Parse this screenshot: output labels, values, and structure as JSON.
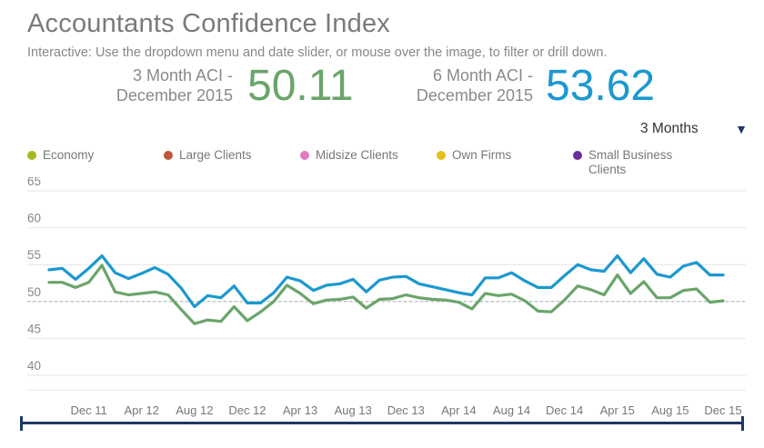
{
  "header": {
    "title": "Accountants Confidence Index",
    "subtitle": "Interactive: Use the dropdown menu and date slider, or mouse over the image, to filter or drill down."
  },
  "kpis": [
    {
      "label_line1": "3 Month ACI -",
      "label_line2": "December 2015",
      "value": "50.11",
      "color": "#6aa56a"
    },
    {
      "label_line1": "6 Month ACI -",
      "label_line2": "December 2015",
      "value": "53.62",
      "color": "#1b98d0"
    }
  ],
  "dropdown": {
    "selected": "3 Months"
  },
  "legend": [
    {
      "label": "Economy",
      "color": "#a6b81e"
    },
    {
      "label": "Large Clients",
      "color": "#c0553a"
    },
    {
      "label": "Midsize Clients",
      "color": "#e07ac0"
    },
    {
      "label": "Own Firms",
      "color": "#e4c01c"
    },
    {
      "label": "Small Business Clients",
      "color": "#6b2d9a"
    }
  ],
  "chart_data": {
    "type": "line",
    "title": "",
    "xlabel": "",
    "ylabel": "",
    "ylim": [
      38,
      67
    ],
    "yticks": [
      40,
      45,
      50,
      55,
      60,
      65
    ],
    "reference_line": 50,
    "x_tick_labels": [
      "Dec 11",
      "Apr 12",
      "Aug 12",
      "Dec 12",
      "Apr 13",
      "Aug 13",
      "Dec 13",
      "Apr 14",
      "Aug 14",
      "Dec 14",
      "Apr 15",
      "Aug 15",
      "Dec 15"
    ],
    "x": [
      "Sep 11",
      "Oct 11",
      "Nov 11",
      "Dec 11",
      "Jan 12",
      "Feb 12",
      "Mar 12",
      "Apr 12",
      "May 12",
      "Jun 12",
      "Jul 12",
      "Aug 12",
      "Sep 12",
      "Oct 12",
      "Nov 12",
      "Dec 12",
      "Jan 13",
      "Feb 13",
      "Mar 13",
      "Apr 13",
      "May 13",
      "Jun 13",
      "Jul 13",
      "Aug 13",
      "Sep 13",
      "Oct 13",
      "Nov 13",
      "Dec 13",
      "Jan 14",
      "Feb 14",
      "Mar 14",
      "Apr 14",
      "May 14",
      "Jun 14",
      "Jul 14",
      "Aug 14",
      "Sep 14",
      "Oct 14",
      "Nov 14",
      "Dec 14",
      "Jan 15",
      "Feb 15",
      "Mar 15",
      "Apr 15",
      "May 15",
      "Jun 15",
      "Jul 15",
      "Aug 15",
      "Sep 15",
      "Oct 15",
      "Nov 15",
      "Dec 15"
    ],
    "series": [
      {
        "name": "6 Month ACI",
        "color": "#1b98d0",
        "values": [
          54.3,
          54.5,
          53.0,
          54.5,
          56.2,
          53.9,
          53.1,
          53.8,
          54.6,
          53.7,
          51.8,
          49.3,
          50.8,
          50.5,
          52.1,
          49.8,
          49.8,
          51.2,
          53.3,
          52.8,
          51.5,
          52.2,
          52.4,
          53.0,
          51.3,
          52.9,
          53.3,
          53.4,
          52.4,
          52.0,
          51.6,
          51.2,
          50.9,
          53.2,
          53.2,
          53.9,
          52.8,
          51.9,
          51.9,
          53.5,
          55.0,
          54.3,
          54.1,
          56.2,
          53.9,
          55.8,
          53.7,
          53.3,
          54.8,
          55.3,
          53.6,
          53.6
        ]
      },
      {
        "name": "3 Month ACI",
        "color": "#6aa56a",
        "values": [
          52.6,
          52.6,
          51.9,
          52.6,
          54.9,
          51.3,
          50.9,
          51.1,
          51.3,
          50.9,
          48.9,
          47.0,
          47.5,
          47.3,
          49.3,
          47.4,
          48.6,
          50.0,
          52.2,
          51.1,
          49.7,
          50.2,
          50.3,
          50.6,
          49.1,
          50.3,
          50.4,
          50.9,
          50.5,
          50.3,
          50.2,
          49.9,
          49.0,
          51.1,
          50.8,
          51.0,
          50.1,
          48.7,
          48.6,
          50.2,
          52.1,
          51.6,
          50.9,
          53.6,
          51.1,
          52.7,
          50.5,
          50.5,
          51.5,
          51.7,
          49.9,
          50.1
        ]
      }
    ]
  }
}
